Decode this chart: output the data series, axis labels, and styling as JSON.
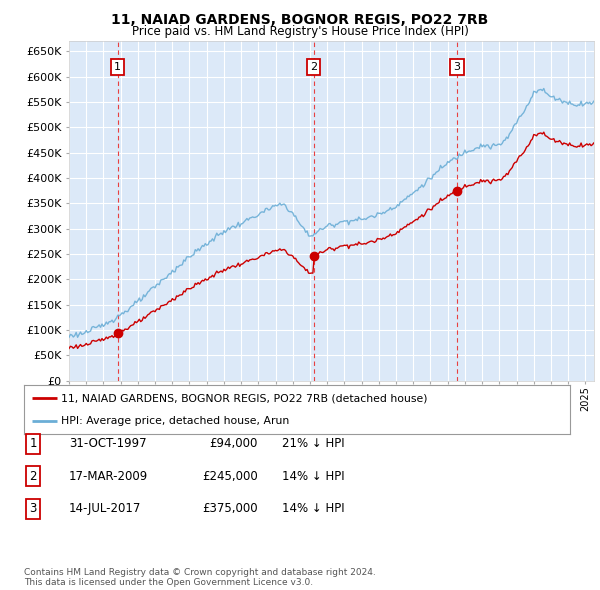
{
  "title": "11, NAIAD GARDENS, BOGNOR REGIS, PO22 7RB",
  "subtitle": "Price paid vs. HM Land Registry's House Price Index (HPI)",
  "ylim": [
    0,
    670000
  ],
  "yticks": [
    0,
    50000,
    100000,
    150000,
    200000,
    250000,
    300000,
    350000,
    400000,
    450000,
    500000,
    550000,
    600000,
    650000
  ],
  "xlim_start": 1995.0,
  "xlim_end": 2025.5,
  "background_color": "#dce9f8",
  "grid_color": "#ffffff",
  "sale_dates": [
    1997.83,
    2009.21,
    2017.54
  ],
  "sale_prices": [
    94000,
    245000,
    375000
  ],
  "sale_labels": [
    "1",
    "2",
    "3"
  ],
  "sale_table": [
    [
      "1",
      "31-OCT-1997",
      "£94,000",
      "21% ↓ HPI"
    ],
    [
      "2",
      "17-MAR-2009",
      "£245,000",
      "14% ↓ HPI"
    ],
    [
      "3",
      "14-JUL-2017",
      "£375,000",
      "14% ↓ HPI"
    ]
  ],
  "legend_label_red": "11, NAIAD GARDENS, BOGNOR REGIS, PO22 7RB (detached house)",
  "legend_label_blue": "HPI: Average price, detached house, Arun",
  "footer": "Contains HM Land Registry data © Crown copyright and database right 2024.\nThis data is licensed under the Open Government Licence v3.0.",
  "hpi_color": "#6baed6",
  "price_color": "#cc0000",
  "dashed_line_color": "#e84040",
  "hpi_knots_t": [
    1995,
    1996,
    1997,
    1998,
    1999,
    2000,
    2001,
    2002,
    2003,
    2004,
    2005,
    2006,
    2007,
    2007.5,
    2008,
    2008.5,
    2009,
    2009.5,
    2010,
    2011,
    2012,
    2013,
    2014,
    2015,
    2016,
    2017,
    2017.5,
    2018,
    2018.5,
    2019,
    2019.5,
    2020,
    2020.5,
    2021,
    2021.5,
    2022,
    2022.3,
    2022.6,
    2023,
    2023.5,
    2024,
    2024.5,
    2025
  ],
  "hpi_knots_v": [
    88000,
    95000,
    110000,
    130000,
    155000,
    185000,
    215000,
    245000,
    270000,
    295000,
    310000,
    328000,
    345000,
    348000,
    330000,
    305000,
    285000,
    295000,
    305000,
    315000,
    318000,
    328000,
    345000,
    370000,
    400000,
    430000,
    440000,
    452000,
    458000,
    465000,
    462000,
    465000,
    480000,
    510000,
    535000,
    570000,
    575000,
    572000,
    560000,
    555000,
    548000,
    545000,
    548000
  ]
}
